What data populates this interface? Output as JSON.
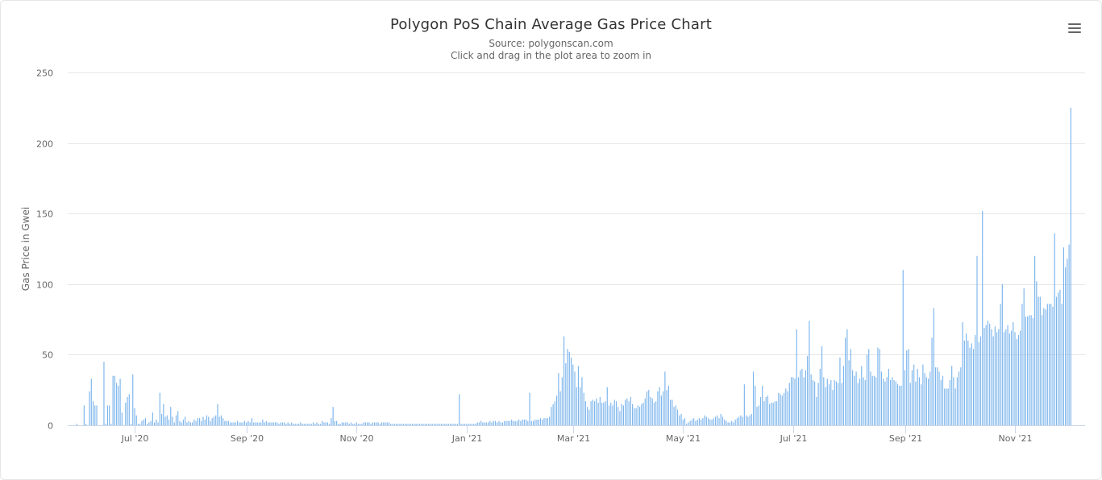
{
  "chart_data": {
    "type": "bar",
    "title": "Polygon PoS Chain Average Gas Price Chart",
    "subtitle": "Source: polygonscan.com",
    "subtitle2": "Click and drag in the plot area to zoom in",
    "ylabel": "Gas Price in Gwei",
    "xlabel": "",
    "ylim": [
      0,
      250
    ],
    "yticks": [
      0,
      50,
      100,
      150,
      200,
      250
    ],
    "x_start": "2020-05-30",
    "x_end": "2021-12-03",
    "xticks": [
      {
        "date": "2020-07-01",
        "label": "Jul '20"
      },
      {
        "date": "2020-09-01",
        "label": "Sep '20"
      },
      {
        "date": "2020-11-01",
        "label": "Nov '20"
      },
      {
        "date": "2021-01-01",
        "label": "Jan '21"
      },
      {
        "date": "2021-03-01",
        "label": "Mar '21"
      },
      {
        "date": "2021-05-01",
        "label": "May '21"
      },
      {
        "date": "2021-07-01",
        "label": "Jul '21"
      },
      {
        "date": "2021-09-01",
        "label": "Sep '21"
      },
      {
        "date": "2021-11-01",
        "label": "Nov '21"
      }
    ],
    "series": [
      {
        "name": "Average Gas Price (Gwei)",
        "color": "#7cb5ec",
        "values": [
          1,
          0,
          0,
          0,
          14,
          1,
          0,
          24,
          33,
          17,
          14,
          14,
          0,
          0,
          0,
          45,
          1,
          14,
          14,
          1,
          35,
          35,
          30,
          28,
          33,
          9,
          0,
          16,
          20,
          22,
          1,
          36,
          12,
          7,
          1,
          1,
          3,
          4,
          5,
          1,
          2,
          3,
          9,
          2,
          4,
          2,
          23,
          8,
          15,
          6,
          7,
          4,
          13,
          6,
          2,
          7,
          10,
          3,
          2,
          4,
          6,
          2,
          3,
          2,
          2,
          4,
          3,
          5,
          5,
          3,
          6,
          4,
          7,
          6,
          3,
          5,
          6,
          7,
          15,
          6,
          7,
          5,
          3,
          3,
          3,
          2,
          2,
          2,
          2,
          3,
          2,
          2,
          2,
          3,
          2,
          3,
          2,
          5,
          2,
          2,
          2,
          2,
          2,
          4,
          2,
          3,
          2,
          2,
          2,
          2,
          2,
          2,
          1,
          2,
          2,
          2,
          1,
          2,
          1,
          2,
          1,
          1,
          1,
          1,
          2,
          1,
          1,
          1,
          1,
          1,
          1,
          2,
          1,
          2,
          1,
          1,
          3,
          2,
          2,
          2,
          1,
          5,
          13,
          3,
          3,
          1,
          1,
          2,
          2,
          2,
          2,
          1,
          2,
          1,
          1,
          2,
          1,
          1,
          1,
          2,
          2,
          2,
          2,
          1,
          2,
          2,
          2,
          2,
          1,
          2,
          2,
          2,
          2,
          2,
          1,
          1,
          1,
          1,
          1,
          1,
          1,
          1,
          1,
          1,
          1,
          1,
          1,
          1,
          1,
          1,
          1,
          1,
          1,
          1,
          1,
          1,
          1,
          1,
          1,
          1,
          1,
          1,
          1,
          1,
          1,
          1,
          1,
          1,
          1,
          1,
          1,
          1,
          22,
          1,
          1,
          1,
          1,
          1,
          1,
          1,
          1,
          1,
          2,
          2,
          3,
          2,
          2,
          2,
          2,
          3,
          2,
          3,
          3,
          2,
          3,
          2,
          2,
          3,
          3,
          3,
          3,
          4,
          3,
          3,
          3,
          4,
          3,
          4,
          4,
          4,
          3,
          23,
          3,
          3,
          4,
          4,
          4,
          5,
          4,
          5,
          5,
          5,
          6,
          13,
          15,
          17,
          21,
          37,
          24,
          34,
          63,
          44,
          54,
          52,
          48,
          43,
          38,
          27,
          42,
          27,
          34,
          23,
          17,
          13,
          11,
          17,
          18,
          17,
          19,
          16,
          20,
          16,
          16,
          17,
          27,
          14,
          16,
          14,
          18,
          17,
          13,
          10,
          15,
          14,
          18,
          19,
          17,
          20,
          15,
          12,
          12,
          14,
          13,
          15,
          16,
          19,
          24,
          25,
          20,
          19,
          16,
          17,
          24,
          27,
          21,
          24,
          38,
          25,
          28,
          18,
          18,
          13,
          14,
          11,
          7,
          8,
          4,
          5,
          1,
          2,
          3,
          4,
          5,
          3,
          4,
          5,
          4,
          5,
          7,
          6,
          5,
          4,
          4,
          5,
          6,
          7,
          5,
          8,
          6,
          4,
          3,
          2,
          2,
          3,
          2,
          4,
          5,
          6,
          7,
          6,
          29,
          7,
          6,
          7,
          8,
          38,
          28,
          13,
          14,
          20,
          28,
          17,
          20,
          21,
          15,
          16,
          16,
          17,
          17,
          23,
          22,
          21,
          23,
          26,
          24,
          30,
          34,
          34,
          33,
          68,
          34,
          39,
          40,
          34,
          39,
          49,
          74,
          36,
          32,
          31,
          20,
          30,
          40,
          56,
          34,
          27,
          33,
          29,
          32,
          25,
          32,
          31,
          30,
          48,
          30,
          42,
          62,
          68,
          46,
          54,
          39,
          35,
          38,
          30,
          33,
          42,
          34,
          32,
          50,
          54,
          38,
          35,
          35,
          34,
          55,
          54,
          38,
          33,
          31,
          34,
          40,
          32,
          34,
          32,
          31,
          29,
          28,
          28,
          110,
          39,
          53,
          54,
          30,
          39,
          43,
          31,
          40,
          34,
          29,
          43,
          37,
          34,
          33,
          38,
          62,
          83,
          41,
          41,
          38,
          32,
          35,
          26,
          26,
          26,
          32,
          42,
          34,
          26,
          34,
          38,
          41,
          73,
          60,
          65,
          60,
          55,
          58,
          54,
          64,
          120,
          59,
          63,
          152,
          69,
          71,
          74,
          72,
          68,
          63,
          70,
          66,
          68,
          86,
          100,
          66,
          68,
          71,
          65,
          67,
          73,
          66,
          61,
          64,
          67,
          86,
          97,
          77,
          77,
          78,
          78,
          76,
          120,
          102,
          91,
          91,
          78,
          83,
          82,
          86,
          86,
          86,
          84,
          136,
          91,
          94,
          96,
          86,
          126,
          112,
          118,
          128,
          225
        ]
      }
    ]
  },
  "menu": {
    "icon": "hamburger-menu-icon"
  }
}
